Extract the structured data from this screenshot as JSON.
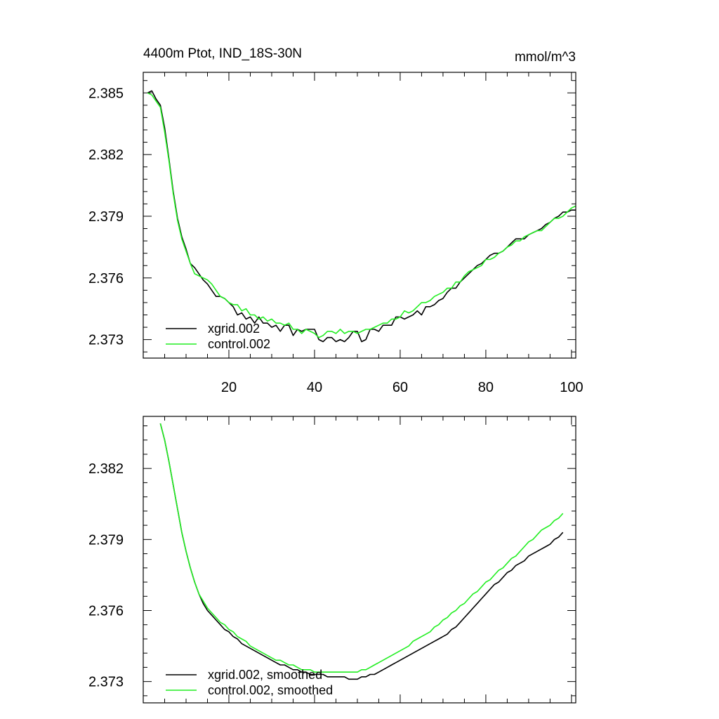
{
  "chart_data": [
    {
      "type": "line",
      "title_left": "4400m Ptot, IND_18S-30N",
      "title_right": "mmol/m^3",
      "xlabel": "",
      "ylabel": "",
      "xlim": [
        0,
        101
      ],
      "ylim": [
        2.3721,
        2.386
      ],
      "xticks": [
        20,
        40,
        60,
        80,
        100
      ],
      "xtick_labels": [
        "20",
        "40",
        "60",
        "80",
        "100"
      ],
      "yticks": [
        2.373,
        2.376,
        2.379,
        2.382,
        2.385
      ],
      "ytick_labels": [
        "2.373",
        "2.376",
        "2.379",
        "2.382",
        "2.385"
      ],
      "grid": false,
      "legend_position": "bottom-left",
      "series": [
        {
          "name": "xgrid.002",
          "color": "#000000",
          "x": [
            1,
            2,
            3,
            4,
            5,
            6,
            7,
            8,
            9,
            10,
            11,
            12,
            13,
            14,
            15,
            16,
            17,
            18,
            19,
            20,
            21,
            22,
            23,
            24,
            25,
            26,
            27,
            28,
            29,
            30,
            31,
            32,
            33,
            34,
            35,
            36,
            37,
            38,
            39,
            40,
            41,
            42,
            43,
            44,
            45,
            46,
            47,
            48,
            49,
            50,
            51,
            52,
            53,
            54,
            55,
            56,
            57,
            58,
            59,
            60,
            61,
            62,
            63,
            64,
            65,
            66,
            67,
            68,
            69,
            70,
            71,
            72,
            73,
            74,
            75,
            76,
            77,
            78,
            79,
            80,
            81,
            82,
            83,
            84,
            85,
            86,
            87,
            88,
            89,
            90,
            91,
            92,
            93,
            94,
            95,
            96,
            97,
            98,
            99,
            100,
            101
          ],
          "values": [
            2.385,
            2.3851,
            2.3847,
            2.3844,
            2.3833,
            2.3818,
            2.3802,
            2.3789,
            2.378,
            2.3774,
            2.3767,
            2.3765,
            2.3762,
            2.3759,
            2.3757,
            2.3754,
            2.3751,
            2.3751,
            2.375,
            2.3748,
            2.3746,
            2.3742,
            2.3743,
            2.374,
            2.3741,
            2.3738,
            2.3741,
            2.3738,
            2.3738,
            2.3736,
            2.3737,
            2.3734,
            2.3737,
            2.3737,
            2.3732,
            2.3735,
            2.3734,
            2.3735,
            2.3735,
            2.3735,
            2.373,
            2.3729,
            2.3731,
            2.3731,
            2.3729,
            2.373,
            2.3729,
            2.3731,
            2.3734,
            2.3734,
            2.3729,
            2.373,
            2.3735,
            2.3735,
            2.3734,
            2.3737,
            2.3737,
            2.3737,
            2.3741,
            2.3741,
            2.374,
            2.3741,
            2.3742,
            2.3744,
            2.3742,
            2.3746,
            2.3746,
            2.3747,
            2.3749,
            2.375,
            2.3753,
            2.3755,
            2.3755,
            2.3758,
            2.376,
            2.3762,
            2.3764,
            2.3766,
            2.3767,
            2.3769,
            2.3771,
            2.3772,
            2.3772,
            2.3773,
            2.3775,
            2.3777,
            2.3779,
            2.3779,
            2.3779,
            2.3781,
            2.3782,
            2.3783,
            2.3784,
            2.3786,
            2.3787,
            2.3789,
            2.379,
            2.3792,
            2.3792,
            2.3793,
            2.3793
          ]
        },
        {
          "name": "control.002",
          "color": "#22ee22",
          "x": [
            1,
            2,
            3,
            4,
            5,
            6,
            7,
            8,
            9,
            10,
            11,
            12,
            13,
            14,
            15,
            16,
            17,
            18,
            19,
            20,
            21,
            22,
            23,
            24,
            25,
            26,
            27,
            28,
            29,
            30,
            31,
            32,
            33,
            34,
            35,
            36,
            37,
            38,
            39,
            40,
            41,
            42,
            43,
            44,
            45,
            46,
            47,
            48,
            49,
            50,
            51,
            52,
            53,
            54,
            55,
            56,
            57,
            58,
            59,
            60,
            61,
            62,
            63,
            64,
            65,
            66,
            67,
            68,
            69,
            70,
            71,
            72,
            73,
            74,
            75,
            76,
            77,
            78,
            79,
            80,
            81,
            82,
            83,
            84,
            85,
            86,
            87,
            88,
            89,
            90,
            91,
            92,
            93,
            94,
            95,
            96,
            97,
            98,
            99,
            100,
            101
          ],
          "values": [
            2.385,
            2.3849,
            2.3846,
            2.3843,
            2.3831,
            2.3817,
            2.3801,
            2.3788,
            2.3779,
            2.3773,
            2.3767,
            2.3762,
            2.3761,
            2.376,
            2.3759,
            2.3757,
            2.3754,
            2.3751,
            2.375,
            2.3748,
            2.3747,
            2.3747,
            2.3744,
            2.3745,
            2.3742,
            2.3742,
            2.374,
            2.3741,
            2.3739,
            2.374,
            2.3738,
            2.3738,
            2.3737,
            2.3738,
            2.3735,
            2.3735,
            2.3733,
            2.3735,
            2.3734,
            2.3733,
            2.3731,
            2.3732,
            2.3734,
            2.3734,
            2.3733,
            2.3735,
            2.3733,
            2.3734,
            2.3734,
            2.3733,
            2.3734,
            2.3735,
            2.3735,
            2.3736,
            2.3737,
            2.3738,
            2.3738,
            2.374,
            2.374,
            2.3741,
            2.3744,
            2.3743,
            2.3744,
            2.3746,
            2.3748,
            2.3748,
            2.3749,
            2.3751,
            2.3752,
            2.3753,
            2.3755,
            2.3755,
            2.3758,
            2.3758,
            2.3761,
            2.3763,
            2.3764,
            2.3765,
            2.3766,
            2.3769,
            2.3769,
            2.377,
            2.3772,
            2.3773,
            2.3775,
            2.3776,
            2.3778,
            2.3778,
            2.378,
            2.3781,
            2.3782,
            2.3783,
            2.3783,
            2.3785,
            2.3787,
            2.3789,
            2.3789,
            2.379,
            2.3792,
            2.3794,
            2.3795
          ]
        }
      ]
    },
    {
      "type": "line",
      "title_left": "",
      "title_right": "",
      "xlabel": "",
      "ylabel": "",
      "xlim": [
        0,
        101
      ],
      "ylim": [
        2.3721,
        2.3842
      ],
      "xticks": [
        20,
        40,
        60,
        80,
        100
      ],
      "xtick_labels": [],
      "yticks": [
        2.373,
        2.376,
        2.379,
        2.382
      ],
      "ytick_labels": [
        "2.373",
        "2.376",
        "2.379",
        "2.382"
      ],
      "grid": false,
      "legend_position": "bottom-left",
      "series": [
        {
          "name": "xgrid.002, smoothed",
          "color": "#000000",
          "x": [
            4,
            5,
            6,
            7,
            8,
            9,
            10,
            11,
            12,
            13,
            14,
            15,
            16,
            17,
            18,
            19,
            20,
            21,
            22,
            23,
            24,
            25,
            26,
            27,
            28,
            29,
            30,
            31,
            32,
            33,
            34,
            35,
            36,
            37,
            38,
            39,
            40,
            41,
            42,
            43,
            44,
            45,
            46,
            47,
            48,
            49,
            50,
            51,
            52,
            53,
            54,
            55,
            56,
            57,
            58,
            59,
            60,
            61,
            62,
            63,
            64,
            65,
            66,
            67,
            68,
            69,
            70,
            71,
            72,
            73,
            74,
            75,
            76,
            77,
            78,
            79,
            80,
            81,
            82,
            83,
            84,
            85,
            86,
            87,
            88,
            89,
            90,
            91,
            92,
            93,
            94,
            95,
            96,
            97,
            98
          ],
          "values": [
            2.3839,
            2.3832,
            2.3823,
            2.3813,
            2.3803,
            2.3793,
            2.3785,
            2.3778,
            2.3772,
            2.3767,
            2.3763,
            2.376,
            2.3758,
            2.3756,
            2.3754,
            2.3752,
            2.3751,
            2.3749,
            2.3748,
            2.3746,
            2.3745,
            2.3744,
            2.3743,
            2.3742,
            2.3741,
            2.374,
            2.3739,
            2.3738,
            2.3737,
            2.3737,
            2.3736,
            2.3735,
            2.3735,
            2.3734,
            2.3734,
            2.3733,
            2.3733,
            2.3733,
            2.3733,
            2.3732,
            2.3732,
            2.3732,
            2.3732,
            2.3732,
            2.3731,
            2.3731,
            2.3731,
            2.3732,
            2.3732,
            2.3733,
            2.3733,
            2.3734,
            2.3735,
            2.3736,
            2.3737,
            2.3738,
            2.3739,
            2.374,
            2.3741,
            2.3742,
            2.3743,
            2.3744,
            2.3745,
            2.3746,
            2.3747,
            2.3748,
            2.3749,
            2.375,
            2.3752,
            2.3753,
            2.3755,
            2.3757,
            2.3759,
            2.3761,
            2.3763,
            2.3765,
            2.3767,
            2.3769,
            2.3771,
            2.3772,
            2.3774,
            2.3776,
            2.3777,
            2.3779,
            2.378,
            2.3781,
            2.3783,
            2.3784,
            2.3785,
            2.3786,
            2.3787,
            2.3788,
            2.379,
            2.3791,
            2.3793
          ]
        },
        {
          "name": "control.002, smoothed",
          "color": "#22ee22",
          "x": [
            4,
            5,
            6,
            7,
            8,
            9,
            10,
            11,
            12,
            13,
            14,
            15,
            16,
            17,
            18,
            19,
            20,
            21,
            22,
            23,
            24,
            25,
            26,
            27,
            28,
            29,
            30,
            31,
            32,
            33,
            34,
            35,
            36,
            37,
            38,
            39,
            40,
            41,
            42,
            43,
            44,
            45,
            46,
            47,
            48,
            49,
            50,
            51,
            52,
            53,
            54,
            55,
            56,
            57,
            58,
            59,
            60,
            61,
            62,
            63,
            64,
            65,
            66,
            67,
            68,
            69,
            70,
            71,
            72,
            73,
            74,
            75,
            76,
            77,
            78,
            79,
            80,
            81,
            82,
            83,
            84,
            85,
            86,
            87,
            88,
            89,
            90,
            91,
            92,
            93,
            94,
            95,
            96,
            97,
            98
          ],
          "values": [
            2.3839,
            2.3832,
            2.3823,
            2.3813,
            2.3803,
            2.3793,
            2.3785,
            2.3778,
            2.3772,
            2.3767,
            2.3764,
            2.3761,
            2.3759,
            2.3757,
            2.3755,
            2.3754,
            2.3752,
            2.3751,
            2.3749,
            2.3748,
            2.3747,
            2.3745,
            2.3744,
            2.3743,
            2.3742,
            2.3741,
            2.374,
            2.3739,
            2.3739,
            2.3738,
            2.3737,
            2.3737,
            2.3736,
            2.3735,
            2.3735,
            2.3735,
            2.3734,
            2.3734,
            2.3734,
            2.3734,
            2.3734,
            2.3734,
            2.3734,
            2.3734,
            2.3734,
            2.3734,
            2.3734,
            2.3735,
            2.3735,
            2.3736,
            2.3737,
            2.3738,
            2.3739,
            2.374,
            2.3741,
            2.3742,
            2.3743,
            2.3744,
            2.3745,
            2.3747,
            2.3748,
            2.3749,
            2.375,
            2.3751,
            2.3753,
            2.3754,
            2.3756,
            2.3757,
            2.3759,
            2.376,
            2.3762,
            2.3763,
            2.3765,
            2.3767,
            2.3768,
            2.377,
            2.3772,
            2.3773,
            2.3775,
            2.3777,
            2.3778,
            2.378,
            2.3782,
            2.3783,
            2.3785,
            2.3787,
            2.3789,
            2.379,
            2.3792,
            2.3794,
            2.3795,
            2.3796,
            2.3798,
            2.3799,
            2.3801
          ]
        }
      ]
    }
  ]
}
